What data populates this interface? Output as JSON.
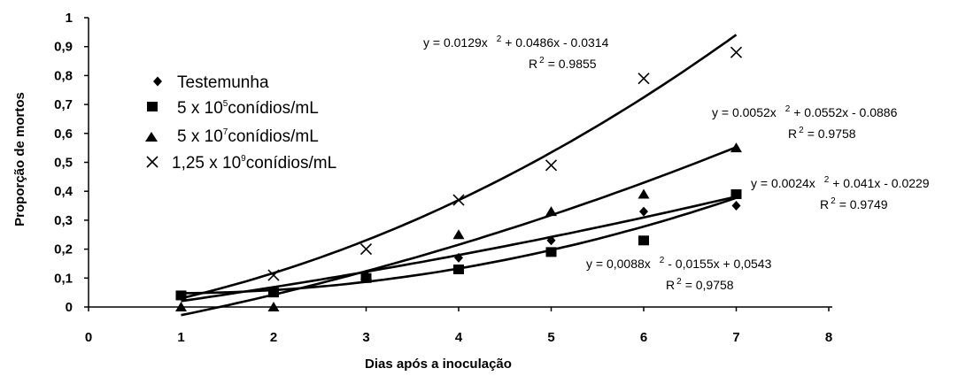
{
  "chart_data": {
    "type": "scatter",
    "xlabel": "Dias após a inoculação",
    "ylabel": "Proporção de mortos",
    "xlim": [
      0,
      8
    ],
    "ylim": [
      0,
      1
    ],
    "x_ticks": [
      "0",
      "1",
      "2",
      "3",
      "4",
      "5",
      "6",
      "7",
      "8"
    ],
    "y_ticks": [
      "0",
      "0,1",
      "0,2",
      "0,3",
      "0,4",
      "0,5",
      "0,6",
      "0,7",
      "0,8",
      "0,9",
      "1"
    ],
    "grid": false,
    "legend_position": "top-left",
    "series": [
      {
        "name": "Testemunha",
        "marker": "diamond",
        "x": [
          1,
          2,
          3,
          4,
          5,
          6,
          7
        ],
        "y": [
          0.04,
          0.05,
          0.11,
          0.17,
          0.23,
          0.33,
          0.35
        ],
        "fit": {
          "a": 0.0024,
          "b": 0.041,
          "c": -0.0229
        },
        "equation": {
          "pre": "y = 0.0024x",
          "post": " + 0.041x - 0.0229",
          "r2": "= 0.9749"
        }
      },
      {
        "name_prefix": "5 x 10",
        "name_exp": "5",
        "name_suffix": "conídios/mL",
        "marker": "square",
        "x": [
          1,
          2,
          3,
          4,
          5,
          6,
          7
        ],
        "y": [
          0.04,
          0.05,
          0.1,
          0.13,
          0.19,
          0.23,
          0.39
        ],
        "fit": {
          "a": 0.0088,
          "b": -0.0155,
          "c": 0.0543
        },
        "equation": {
          "pre": "y = 0,0088x",
          "post": " - 0,0155x + 0,0543",
          "r2": "= 0,9758"
        }
      },
      {
        "name_prefix": "5 x 10",
        "name_exp": "7",
        "name_suffix": "conídios/mL",
        "marker": "triangle",
        "x": [
          1,
          2,
          3,
          4,
          5,
          6,
          7
        ],
        "y": [
          0.0,
          0.0,
          0.11,
          0.25,
          0.33,
          0.39,
          0.55
        ],
        "fit": {
          "a": 0.0052,
          "b": 0.0552,
          "c": -0.0886
        },
        "equation": {
          "pre": "y = 0.0052x",
          "post": " + 0.0552x - 0.0886",
          "r2": "= 0.9758"
        }
      },
      {
        "name_prefix": "1,25 x 10",
        "name_exp": "9",
        "name_suffix": "conídios/mL",
        "marker": "x",
        "x": [
          2,
          3,
          4,
          5,
          6,
          7
        ],
        "y": [
          0.11,
          0.2,
          0.37,
          0.49,
          0.79,
          0.88
        ],
        "fit": {
          "a": 0.0129,
          "b": 0.0486,
          "c": -0.0314
        },
        "equation": {
          "pre": "y = 0.0129x",
          "post": " + 0.0486x - 0.0314",
          "r2": "= 0.9855"
        }
      }
    ],
    "equation_sup": "2",
    "r2_label": "R",
    "r2_sup": "2"
  }
}
